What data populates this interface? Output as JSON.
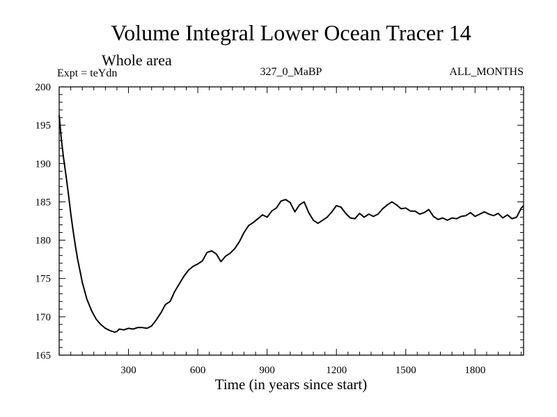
{
  "chart_data": {
    "type": "line",
    "title": "Volume Integral Lower Ocean Tracer 14",
    "subtitle": "Whole area",
    "annotations": {
      "left": "Expt = teYdn",
      "center": "327_0_MaBP",
      "right": "ALL_MONTHS"
    },
    "xlabel": "Time (in years since start)",
    "ylabel": "",
    "xlim": [
      0,
      2010
    ],
    "ylim": [
      165,
      200
    ],
    "xticks": [
      300,
      600,
      900,
      1200,
      1500,
      1800
    ],
    "xtick_labels": [
      "300",
      "600",
      "900",
      "1200",
      "1500",
      "1800"
    ],
    "yticks": [
      165,
      170,
      175,
      180,
      185,
      190,
      195,
      200
    ],
    "ytick_labels": [
      "165",
      "170",
      "175",
      "180",
      "185",
      "190",
      "195",
      "200"
    ],
    "grid": false,
    "series": [
      {
        "name": "Volume Integral Lower Ocean Tracer 14",
        "color": "#000000",
        "x": [
          0,
          10,
          20,
          30,
          40,
          50,
          60,
          70,
          80,
          90,
          100,
          120,
          140,
          160,
          180,
          200,
          220,
          240,
          250,
          260,
          280,
          300,
          320,
          340,
          360,
          380,
          400,
          420,
          440,
          460,
          480,
          500,
          520,
          540,
          560,
          580,
          600,
          620,
          640,
          660,
          680,
          700,
          720,
          740,
          760,
          780,
          800,
          820,
          840,
          860,
          880,
          900,
          920,
          940,
          960,
          980,
          1000,
          1020,
          1040,
          1060,
          1080,
          1100,
          1120,
          1140,
          1160,
          1180,
          1200,
          1220,
          1240,
          1260,
          1280,
          1300,
          1320,
          1340,
          1360,
          1380,
          1400,
          1420,
          1440,
          1460,
          1480,
          1500,
          1520,
          1540,
          1560,
          1580,
          1600,
          1620,
          1640,
          1660,
          1680,
          1700,
          1720,
          1740,
          1760,
          1780,
          1800,
          1820,
          1840,
          1860,
          1880,
          1900,
          1920,
          1940,
          1960,
          1980,
          2000,
          2010
        ],
        "y": [
          196.3,
          193.0,
          190.5,
          188.3,
          186.0,
          183.5,
          181.3,
          179.3,
          177.5,
          176.0,
          174.5,
          172.3,
          170.8,
          169.7,
          169.0,
          168.5,
          168.2,
          168.0,
          168.1,
          168.4,
          168.3,
          168.5,
          168.4,
          168.6,
          168.6,
          168.5,
          168.8,
          169.6,
          170.5,
          171.6,
          172.0,
          173.3,
          174.3,
          175.3,
          176.1,
          176.6,
          176.9,
          177.3,
          178.4,
          178.6,
          178.2,
          177.2,
          177.9,
          178.3,
          178.9,
          179.8,
          181.0,
          181.9,
          182.3,
          182.8,
          183.3,
          183.0,
          183.8,
          184.2,
          185.1,
          185.3,
          184.9,
          183.7,
          184.6,
          185.0,
          183.6,
          182.6,
          182.2,
          182.6,
          183.0,
          183.7,
          184.5,
          184.3,
          183.5,
          182.9,
          182.8,
          183.5,
          183.0,
          183.4,
          183.1,
          183.4,
          184.1,
          184.6,
          185.0,
          184.6,
          184.1,
          184.2,
          183.8,
          183.8,
          183.4,
          183.6,
          184.0,
          183.1,
          182.7,
          182.9,
          182.6,
          182.9,
          182.8,
          183.1,
          183.2,
          183.6,
          183.1,
          183.4,
          183.7,
          183.4,
          183.2,
          183.5,
          182.9,
          183.3,
          182.8,
          183.0,
          184.2,
          184.5
        ]
      }
    ]
  }
}
